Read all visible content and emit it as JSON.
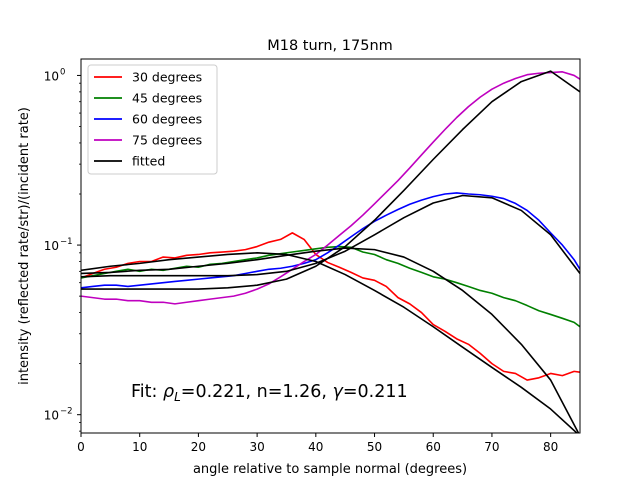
{
  "chart_data": {
    "type": "line",
    "title": "M18 turn, 175nm",
    "xlabel": "angle relative to sample normal (degrees)",
    "ylabel": "intensity (reflected rate/str)/(incident rate)",
    "yscale": "log",
    "xlim": [
      0,
      85
    ],
    "ylim": [
      0.0078,
      1.25
    ],
    "grid": false,
    "legend_position": "top-left",
    "x_ticks": [
      0,
      10,
      20,
      30,
      40,
      50,
      60,
      70,
      80
    ],
    "x_tick_labels": [
      "0",
      "10",
      "20",
      "30",
      "40",
      "50",
      "60",
      "70",
      "80"
    ],
    "y_ticks": [
      0.01,
      0.1,
      1
    ],
    "y_tick_labels_major": [
      "10",
      "10",
      "10"
    ],
    "y_tick_labels_exponent": [
      "−2",
      "−1",
      "0"
    ],
    "annotation": {
      "prefix": "Fit: ",
      "rho": "ρ",
      "rho_sub": "L",
      "rest": "=0.221, n=1.26, ",
      "gamma": "γ",
      "gamma_rest": "=0.211"
    },
    "series": [
      {
        "name": "30 degrees",
        "color": "#ff0000",
        "x": [
          0,
          2,
          4,
          6,
          8,
          10,
          12,
          14,
          16,
          18,
          20,
          22,
          24,
          26,
          28,
          30,
          32,
          34,
          36,
          38,
          40,
          42,
          44,
          46,
          48,
          50,
          52,
          54,
          56,
          58,
          60,
          62,
          64,
          66,
          68,
          70,
          72,
          74,
          76,
          78,
          80,
          82,
          84,
          85
        ],
        "y": [
          0.064,
          0.068,
          0.072,
          0.074,
          0.078,
          0.08,
          0.08,
          0.085,
          0.084,
          0.087,
          0.088,
          0.09,
          0.091,
          0.092,
          0.094,
          0.098,
          0.104,
          0.108,
          0.118,
          0.108,
          0.088,
          0.079,
          0.074,
          0.069,
          0.064,
          0.062,
          0.057,
          0.049,
          0.045,
          0.04,
          0.034,
          0.031,
          0.028,
          0.026,
          0.023,
          0.02,
          0.018,
          0.0175,
          0.016,
          0.0165,
          0.0175,
          0.017,
          0.018,
          0.0178
        ]
      },
      {
        "name": "45 degrees",
        "color": "#008000",
        "x": [
          0,
          2,
          4,
          6,
          8,
          10,
          12,
          14,
          16,
          18,
          20,
          22,
          24,
          26,
          28,
          30,
          32,
          34,
          36,
          38,
          40,
          42,
          44,
          46,
          48,
          50,
          52,
          54,
          56,
          58,
          60,
          62,
          64,
          66,
          68,
          70,
          72,
          74,
          76,
          78,
          80,
          82,
          84,
          85
        ],
        "y": [
          0.064,
          0.066,
          0.068,
          0.07,
          0.072,
          0.07,
          0.072,
          0.071,
          0.073,
          0.075,
          0.074,
          0.077,
          0.078,
          0.08,
          0.082,
          0.084,
          0.087,
          0.089,
          0.091,
          0.093,
          0.095,
          0.097,
          0.098,
          0.097,
          0.091,
          0.088,
          0.082,
          0.078,
          0.073,
          0.069,
          0.065,
          0.063,
          0.06,
          0.057,
          0.054,
          0.052,
          0.049,
          0.047,
          0.044,
          0.041,
          0.039,
          0.037,
          0.035,
          0.033
        ]
      },
      {
        "name": "60 degrees",
        "color": "#0000ff",
        "x": [
          0,
          2,
          4,
          6,
          8,
          10,
          12,
          14,
          16,
          18,
          20,
          22,
          24,
          26,
          28,
          30,
          32,
          34,
          36,
          38,
          40,
          42,
          44,
          46,
          48,
          50,
          52,
          54,
          56,
          58,
          60,
          62,
          64,
          66,
          68,
          70,
          72,
          74,
          76,
          78,
          80,
          82,
          84,
          85
        ],
        "y": [
          0.056,
          0.057,
          0.058,
          0.058,
          0.057,
          0.058,
          0.059,
          0.06,
          0.061,
          0.062,
          0.063,
          0.064,
          0.065,
          0.066,
          0.068,
          0.07,
          0.072,
          0.073,
          0.075,
          0.078,
          0.082,
          0.09,
          0.1,
          0.112,
          0.125,
          0.138,
          0.15,
          0.162,
          0.174,
          0.184,
          0.193,
          0.2,
          0.203,
          0.2,
          0.198,
          0.194,
          0.188,
          0.176,
          0.16,
          0.14,
          0.118,
          0.1,
          0.082,
          0.072
        ]
      },
      {
        "name": "75 degrees",
        "color": "#bf00bf",
        "x": [
          0,
          2,
          4,
          6,
          8,
          10,
          12,
          14,
          16,
          18,
          20,
          22,
          24,
          26,
          28,
          30,
          32,
          34,
          36,
          38,
          40,
          42,
          44,
          46,
          48,
          50,
          52,
          54,
          56,
          58,
          60,
          62,
          64,
          66,
          68,
          70,
          72,
          74,
          76,
          78,
          80,
          82,
          84,
          85
        ],
        "y": [
          0.05,
          0.049,
          0.048,
          0.048,
          0.047,
          0.047,
          0.046,
          0.046,
          0.045,
          0.046,
          0.047,
          0.048,
          0.049,
          0.05,
          0.052,
          0.055,
          0.059,
          0.065,
          0.072,
          0.08,
          0.088,
          0.1,
          0.114,
          0.13,
          0.15,
          0.175,
          0.205,
          0.24,
          0.285,
          0.34,
          0.405,
          0.48,
          0.565,
          0.655,
          0.745,
          0.83,
          0.9,
          0.96,
          1.01,
          1.03,
          1.04,
          1.05,
          1.0,
          0.95
        ]
      },
      {
        "name": "fitted",
        "color": "#000000",
        "x": [
          0,
          5,
          10,
          15,
          20,
          25,
          30,
          35,
          40,
          45,
          50,
          55,
          60,
          65,
          70,
          75,
          80,
          85
        ],
        "y": [
          0.071,
          0.075,
          0.078,
          0.082,
          0.085,
          0.088,
          0.09,
          0.088,
          0.08,
          0.067,
          0.054,
          0.043,
          0.033,
          0.025,
          0.019,
          0.0145,
          0.0108,
          0.0075
        ]
      },
      {
        "name": "",
        "color": "#000000",
        "x": [
          0,
          5,
          10,
          15,
          20,
          25,
          30,
          35,
          40,
          45,
          50,
          55,
          60,
          65,
          70,
          75,
          80,
          85
        ],
        "y": [
          0.068,
          0.069,
          0.071,
          0.072,
          0.075,
          0.078,
          0.082,
          0.087,
          0.092,
          0.096,
          0.094,
          0.085,
          0.07,
          0.054,
          0.039,
          0.026,
          0.016,
          0.0075
        ]
      },
      {
        "name": "",
        "color": "#000000",
        "x": [
          0,
          5,
          10,
          15,
          20,
          25,
          30,
          35,
          40,
          45,
          50,
          55,
          60,
          65,
          70,
          75,
          80,
          85
        ],
        "y": [
          0.065,
          0.066,
          0.066,
          0.066,
          0.066,
          0.066,
          0.067,
          0.07,
          0.078,
          0.092,
          0.115,
          0.145,
          0.177,
          0.196,
          0.19,
          0.16,
          0.115,
          0.068
        ]
      },
      {
        "name": "",
        "color": "#000000",
        "x": [
          0,
          5,
          10,
          15,
          20,
          25,
          30,
          35,
          40,
          45,
          50,
          55,
          60,
          65,
          70,
          75,
          80,
          85
        ],
        "y": [
          0.055,
          0.055,
          0.055,
          0.055,
          0.055,
          0.056,
          0.058,
          0.063,
          0.075,
          0.098,
          0.14,
          0.21,
          0.32,
          0.48,
          0.7,
          0.92,
          1.06,
          0.8
        ]
      }
    ]
  }
}
